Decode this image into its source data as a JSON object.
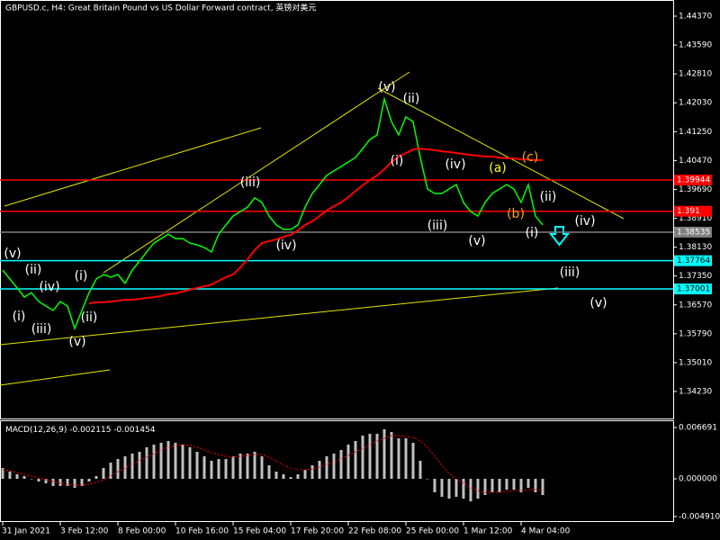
{
  "chart_data": [
    {
      "type": "line",
      "title": "GBPUSD.c, H4:  Great Britain Pound vs US Dollar Forward contract, 英镑对美元",
      "categories": [
        "31 Jan 2021",
        null,
        null,
        null,
        null,
        null,
        null,
        null,
        "3 Feb 12:00",
        null,
        null,
        null,
        null,
        null,
        null,
        null,
        "8 Feb 00:00",
        null,
        null,
        null,
        null,
        null,
        null,
        null,
        "10 Feb 16:00",
        null,
        null,
        null,
        null,
        null,
        null,
        null,
        "15 Feb 04:00",
        null,
        null,
        null,
        null,
        null,
        null,
        null,
        "17 Feb 20:00",
        null,
        null,
        null,
        null,
        null,
        null,
        null,
        "22 Feb 08:00",
        null,
        null,
        null,
        null,
        null,
        null,
        null,
        "25 Feb 00:00",
        null,
        null,
        null,
        null,
        null,
        null,
        null,
        "1 Mar 12:00",
        null,
        null,
        null,
        null,
        null,
        null,
        null,
        "4 Mar 04:00",
        null,
        null,
        null
      ],
      "series": [
        {
          "color": "#00ff00",
          "values": [
            1.3751,
            1.3727,
            1.3703,
            1.3678,
            1.369,
            1.3666,
            1.3654,
            1.3642,
            1.3666,
            1.3654,
            1.3593,
            1.3642,
            1.369,
            1.3727,
            1.3739,
            1.3732,
            1.3739,
            1.3715,
            1.3751,
            1.3775,
            1.38,
            1.3824,
            1.3836,
            1.3848,
            1.3836,
            1.3836,
            1.3824,
            1.3819,
            1.3812,
            1.38,
            1.3848,
            1.3873,
            1.3897,
            1.3909,
            1.3921,
            1.3946,
            1.3934,
            1.3897,
            1.3873,
            1.3861,
            1.3861,
            1.3873,
            1.3921,
            1.3958,
            1.3982,
            1.4007,
            1.4019,
            1.4031,
            1.4043,
            1.4055,
            1.4079,
            1.4104,
            1.4116,
            1.4213,
            1.4152,
            1.4116,
            1.4165,
            1.4152,
            1.4055,
            1.397,
            1.3958,
            1.3958,
            1.397,
            1.3982,
            1.3934,
            1.3909,
            1.3897,
            1.3934,
            1.3958,
            1.397,
            1.3982,
            1.397,
            1.3934,
            1.3982,
            1.3897,
            1.3873
          ]
        },
        {
          "color": "#ff0000",
          "values": [
            null,
            null,
            null,
            null,
            null,
            null,
            null,
            null,
            null,
            null,
            null,
            null,
            1.3661,
            1.3664,
            1.3664,
            1.3666,
            1.3668,
            1.3671,
            1.3671,
            1.3673,
            1.3676,
            1.3678,
            1.3681,
            1.3686,
            1.3688,
            1.3693,
            1.3698,
            1.3703,
            1.3707,
            1.3712,
            1.3722,
            1.3732,
            1.3739,
            1.3758,
            1.378,
            1.3805,
            1.3824,
            1.3829,
            1.3834,
            1.3841,
            1.3846,
            1.3858,
            1.3873,
            1.3883,
            1.3897,
            1.3912,
            1.3924,
            1.3934,
            1.3948,
            1.3965,
            1.398,
            1.3994,
            1.4007,
            1.4024,
            1.4043,
            1.4058,
            1.4067,
            1.4077,
            1.4079,
            1.4077,
            1.4075,
            1.4072,
            1.407,
            1.4067,
            1.4065,
            1.4062,
            1.406,
            1.4058,
            1.4058,
            1.4055,
            1.4053,
            1.4053,
            1.405,
            1.405,
            1.4048,
            1.4048
          ]
        }
      ],
      "ylim": [
        1.335,
        1.44808
      ],
      "yticks": [
        {
          "value": 1.4437,
          "label": "1.44370"
        },
        {
          "value": 1.4359,
          "label": "1.43590"
        },
        {
          "value": 1.4281,
          "label": "1.42810"
        },
        {
          "value": 1.4203,
          "label": "1.42030"
        },
        {
          "value": 1.4125,
          "label": "1.41250"
        },
        {
          "value": 1.4047,
          "label": "1.40470"
        },
        {
          "value": 1.3969,
          "label": "1.39690"
        },
        {
          "value": 1.3891,
          "label": "1.38910"
        },
        {
          "value": 1.3813,
          "label": "1.38130"
        },
        {
          "value": 1.3735,
          "label": "1.37350"
        },
        {
          "value": 1.3657,
          "label": "1.36570"
        },
        {
          "value": 1.3579,
          "label": "1.35790"
        },
        {
          "value": 1.3501,
          "label": "1.35010"
        },
        {
          "value": 1.3423,
          "label": "1.34230"
        }
      ],
      "hlines": [
        {
          "value": 1.39944,
          "color": "#ff0000"
        },
        {
          "value": 1.391,
          "color": "#ff0000"
        },
        {
          "value": 1.37764,
          "color": "#00ffff"
        },
        {
          "value": 1.37001,
          "color": "#00ffff"
        },
        {
          "value": 1.38535,
          "color": "#808080"
        }
      ],
      "annotations": [
        {
          "text": "(v)",
          "color": "#ffffff"
        },
        {
          "text": "(ii)",
          "color": "#ffffff"
        },
        {
          "text": "(iv)",
          "color": "#ffffff"
        },
        {
          "text": "(i)",
          "color": "#ffffff"
        },
        {
          "text": "(iii)",
          "color": "#ffffff"
        },
        {
          "text": "(v)",
          "color": "#ffffff"
        },
        {
          "text": "(i)",
          "color": "#ffffff"
        },
        {
          "text": "(ii)",
          "color": "#ffffff"
        },
        {
          "text": "(iii)",
          "color": "#ffffff"
        },
        {
          "text": "(iv)",
          "color": "#ffffff"
        },
        {
          "text": "(v)",
          "color": "#ffffff"
        },
        {
          "text": "(ii)",
          "color": "#ffffff"
        },
        {
          "text": "(i)",
          "color": "#ffffff"
        },
        {
          "text": "(iv)",
          "color": "#ffffff"
        },
        {
          "text": "(iii)",
          "color": "#ffffff"
        },
        {
          "text": "(v)",
          "color": "#ffffff"
        },
        {
          "text": "(a)",
          "color": "#ffff00"
        },
        {
          "text": "(b)",
          "color": "#ffa500"
        },
        {
          "text": "(c)",
          "color": "#ffa500"
        },
        {
          "text": "(ii)",
          "color": "#ffffff"
        },
        {
          "text": "(iv)",
          "color": "#ffffff"
        },
        {
          "text": "(i)",
          "color": "#ffffff"
        },
        {
          "text": "(iii)",
          "color": "#ffffff"
        },
        {
          "text": "(v)",
          "color": "#ffffff"
        }
      ]
    },
    {
      "type": "bar",
      "title": "MACD(12,26,9)",
      "series": [
        {
          "color": "#c0c0c0",
          "values": [
            0.00141,
            0.00094,
            0.00059,
            0.00035,
            0,
            -0.00035,
            -0.00059,
            -0.00094,
            -0.00094,
            -0.00094,
            -0.00117,
            -0.00094,
            -0.00035,
            0.00035,
            0.00141,
            0.00211,
            0.00258,
            0.00294,
            0.00329,
            0.00352,
            0.00411,
            0.00446,
            0.0047,
            0.00493,
            0.0047,
            0.00446,
            0.00411,
            0.00352,
            0.00294,
            0.00235,
            0.00258,
            0.00258,
            0.00294,
            0.00329,
            0.00329,
            0.00352,
            0.00294,
            0.00176,
            0.00094,
            0.00059,
            0.00023,
            0.00059,
            0.00117,
            0.00176,
            0.00235,
            0.00294,
            0.00329,
            0.00376,
            0.00446,
            0.00493,
            0.00564,
            0.00587,
            0.00587,
            0.00646,
            0.0061,
            0.00528,
            0.00528,
            0.0047,
            0.00235,
            0,
            -0.00176,
            -0.00235,
            -0.00258,
            -0.00235,
            -0.00258,
            -0.00294,
            -0.00258,
            -0.00211,
            -0.00176,
            -0.00176,
            -0.00141,
            -0.00141,
            -0.00176,
            -0.00117,
            -0.00176,
            -0.002115
          ]
        },
        {
          "type": "line",
          "color": "#ff0000",
          "values": [
            0.00117,
            0.00106,
            0.00082,
            0.00059,
            0.00035,
            0.00012,
            -0.00012,
            -0.00035,
            -0.00059,
            -0.0007,
            -0.00082,
            -0.00082,
            -0.0007,
            -0.00047,
            -0.00012,
            0.00035,
            0.00094,
            0.00141,
            0.00188,
            0.00235,
            0.00282,
            0.00329,
            0.00376,
            0.00411,
            0.00434,
            0.00446,
            0.00434,
            0.00411,
            0.00376,
            0.0034,
            0.00317,
            0.00294,
            0.00282,
            0.00294,
            0.00305,
            0.00317,
            0.00317,
            0.00282,
            0.00235,
            0.00176,
            0.00141,
            0.00117,
            0.00117,
            0.00129,
            0.00153,
            0.00188,
            0.00223,
            0.00258,
            0.00305,
            0.00352,
            0.00399,
            0.00446,
            0.00493,
            0.00528,
            0.00564,
            0.00564,
            0.00552,
            0.0054,
            0.00493,
            0.00411,
            0.00294,
            0.00176,
            0.0007,
            0,
            -0.00059,
            -0.00117,
            -0.00153,
            -0.00176,
            -0.00176,
            -0.00176,
            -0.00164,
            -0.00153,
            -0.00153,
            -0.00141,
            -0.00141,
            -0.001454
          ]
        }
      ],
      "ylim": [
        -0.00563,
        0.00763
      ],
      "yticks": [
        0.006691,
        {
          "value": 0,
          "label": "0.000000"
        },
        {
          "value": -0.00491,
          "label": "-0.004910"
        }
      ]
    }
  ]
}
